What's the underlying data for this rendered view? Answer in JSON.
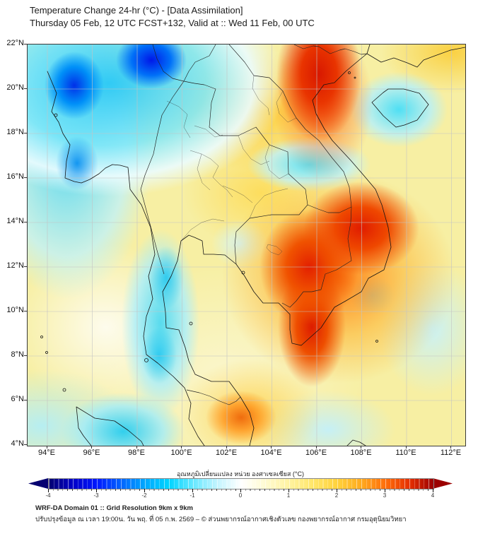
{
  "header": {
    "title": "Temperature Change 24-hr (°C) - [Data Assimilation]",
    "subtitle": "Thursday 05 Feb, 12 UTC FCST+132, Valid at :: Wed 11 Feb, 00 UTC"
  },
  "map": {
    "lat_labels": [
      "22°N",
      "20°N",
      "18°N",
      "16°N",
      "14°N",
      "12°N",
      "10°N",
      "8°N",
      "6°N",
      "4°N"
    ],
    "lon_labels": [
      "94°E",
      "96°E",
      "98°E",
      "100°E",
      "102°E",
      "104°E",
      "106°E",
      "108°E",
      "110°E",
      "112°E"
    ]
  },
  "colorbar": {
    "title": "อุณหภูมิเปลี่ยนแปลง หน่วย องศาเซลเซียส (°C)",
    "unit": "°C",
    "min": -4,
    "max": 4,
    "tick_labels": [
      "-4",
      "-3",
      "-2",
      "-1",
      "0",
      "1",
      "2",
      "3",
      "4"
    ],
    "stops": [
      "#050070",
      "#0000c8",
      "#0018ff",
      "#0064ff",
      "#00a8ff",
      "#00d4ff",
      "#66e8ff",
      "#c2f4ff",
      "#ffffff",
      "#fffbd2",
      "#fff3a0",
      "#ffe668",
      "#ffd23c",
      "#ffaa1e",
      "#ff6e0a",
      "#e63000",
      "#9b0000"
    ]
  },
  "footer": {
    "line1": "WRF-DA Domain 01 :: Grid Resolution 9km x 9km",
    "line2": "ปรับปรุงข้อมูล ณ เวลา 19:00น. วัน พฤ. ที่ 05 ก.พ. 2569 – © ส่วนพยากรณ์อากาศเชิงตัวเลข กองพยากรณ์อากาศ กรมอุตุนิยมวิทยา"
  }
}
